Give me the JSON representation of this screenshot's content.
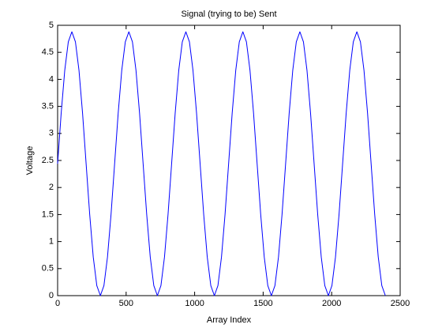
{
  "chart_data": {
    "type": "line",
    "title": "Signal (trying to be) Sent",
    "x_label": "Array Index",
    "y_label": "Voltage",
    "x": [
      0,
      26,
      52,
      78,
      104,
      130,
      156,
      182,
      208,
      234,
      260,
      286,
      312,
      338,
      364,
      390,
      416,
      442,
      468,
      494,
      520,
      546,
      572,
      598,
      624,
      650,
      676,
      702,
      728,
      754,
      780,
      806,
      832,
      858,
      884,
      910,
      936,
      962,
      988,
      1014,
      1040,
      1066,
      1092,
      1118,
      1144,
      1170,
      1196,
      1222,
      1248,
      1274,
      1300,
      1326,
      1352,
      1378,
      1404,
      1430,
      1456,
      1482,
      1508,
      1534,
      1560,
      1586,
      1612,
      1638,
      1664,
      1690,
      1716,
      1742,
      1768,
      1794,
      1820,
      1846,
      1872,
      1898,
      1924,
      1950,
      1976,
      2002,
      2028,
      2054,
      2080,
      2106,
      2132,
      2158,
      2184,
      2210,
      2236,
      2262,
      2288,
      2314,
      2340,
      2366,
      2392
    ],
    "series": [
      {
        "color": "#0000ff",
        "values": [
          2.44,
          3.374,
          4.165,
          4.694,
          4.88,
          4.694,
          4.165,
          3.374,
          2.44,
          1.506,
          0.715,
          0.186,
          0,
          0.186,
          0.715,
          1.506,
          2.44,
          3.374,
          4.165,
          4.694,
          4.88,
          4.694,
          4.165,
          3.374,
          2.44,
          1.506,
          0.715,
          0.186,
          0,
          0.186,
          0.715,
          1.506,
          2.44,
          3.374,
          4.165,
          4.694,
          4.88,
          4.694,
          4.165,
          3.374,
          2.44,
          1.506,
          0.715,
          0.186,
          0,
          0.186,
          0.715,
          1.506,
          2.44,
          3.374,
          4.165,
          4.694,
          4.88,
          4.694,
          4.165,
          3.374,
          2.44,
          1.506,
          0.715,
          0.186,
          0,
          0.186,
          0.715,
          1.506,
          2.44,
          3.374,
          4.165,
          4.694,
          4.88,
          4.694,
          4.165,
          3.374,
          2.44,
          1.506,
          0.715,
          0.186,
          0,
          0.186,
          0.715,
          1.506,
          2.44,
          3.374,
          4.165,
          4.694,
          4.88,
          4.694,
          4.165,
          3.374,
          2.44,
          1.506,
          0.715,
          0.186,
          0
        ]
      }
    ],
    "xlim": [
      0,
      2500
    ],
    "xticks": [
      0,
      500,
      1000,
      1500,
      2000,
      2500
    ],
    "ylim": [
      0,
      5
    ],
    "yticks": [
      0,
      0.5,
      1,
      1.5,
      2,
      2.5,
      3,
      3.5,
      4,
      4.5,
      5
    ]
  }
}
